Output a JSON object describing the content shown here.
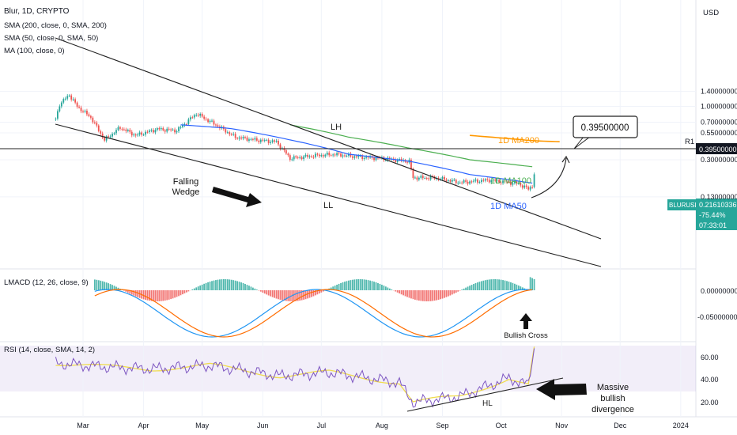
{
  "header": {
    "symbol_line": "Blur, 1D, CRYPTO",
    "indicators": [
      "SMA (200, close, 0, SMA, 200)",
      "SMA (50, close, 0, SMA, 50)",
      "MA (100, close, 0)"
    ],
    "currency": "USD"
  },
  "price_axis": [
    "1.40000000",
    "1.00000000",
    "0.70000000",
    "0.55000000",
    "0.30000000",
    "0.13000000"
  ],
  "r1": {
    "label": "R1",
    "value": "0.39500000"
  },
  "target_box": "0.39500000",
  "last_price": {
    "symbol": "BLURUSD",
    "price": "0.21610336",
    "change": "-75.44%",
    "countdown": "07:33:01"
  },
  "annotations": {
    "lh": "LH",
    "ll": "LL",
    "falling_wedge": [
      "Falling",
      "Wedge"
    ],
    "ma200": "1D MA200",
    "ma100": "1D MA100",
    "ma50": "1D MA50",
    "bullish_cross": "Bullish Cross",
    "hl": "HL",
    "divergence": [
      "Massive",
      "bullish",
      "divergence"
    ]
  },
  "macd": {
    "label": "LMACD (12, 26, close, 9)",
    "axis": [
      "0.00000000",
      "-0.05000000"
    ]
  },
  "rsi": {
    "label": "RSI (14, close, SMA, 14, 2)",
    "axis": [
      "60.00",
      "40.00",
      "20.00"
    ]
  },
  "time_axis": [
    "Mar",
    "Apr",
    "May",
    "Jun",
    "Jul",
    "Aug",
    "Sep",
    "Oct",
    "Nov",
    "Dec",
    "2024"
  ],
  "colors": {
    "up": "#26a69a",
    "down": "#ef5350",
    "ma50": "#2962ff",
    "ma100": "#4caf50",
    "ma200": "#ff9800",
    "rsi": "#7e57c2",
    "rsi_ma": "#f0dc4e",
    "macd": "#2196f3",
    "signal": "#ff6d00"
  },
  "chart_data": {
    "type": "candlestick",
    "title": "Blur, 1D, CRYPTO",
    "y_scale": "log",
    "y_ticks": [
      1.4,
      1.0,
      0.7,
      0.55,
      0.3,
      0.13
    ],
    "price_path": [
      [
        "2023-02-15",
        0.75
      ],
      [
        "2023-02-17",
        1.05
      ],
      [
        "2023-02-22",
        1.3
      ],
      [
        "2023-02-26",
        1.0
      ],
      [
        "2023-03-05",
        0.78
      ],
      [
        "2023-03-12",
        0.47
      ],
      [
        "2023-03-20",
        0.62
      ],
      [
        "2023-03-28",
        0.52
      ],
      [
        "2023-04-08",
        0.6
      ],
      [
        "2023-04-18",
        0.58
      ],
      [
        "2023-04-28",
        0.85
      ],
      [
        "2023-05-08",
        0.66
      ],
      [
        "2023-05-18",
        0.5
      ],
      [
        "2023-05-28",
        0.47
      ],
      [
        "2023-06-08",
        0.45
      ],
      [
        "2023-06-15",
        0.31
      ],
      [
        "2023-06-28",
        0.33
      ],
      [
        "2023-07-08",
        0.34
      ],
      [
        "2023-07-20",
        0.32
      ],
      [
        "2023-08-01",
        0.31
      ],
      [
        "2023-08-15",
        0.29
      ],
      [
        "2023-08-17",
        0.2
      ],
      [
        "2023-08-28",
        0.2
      ],
      [
        "2023-09-10",
        0.18
      ],
      [
        "2023-09-25",
        0.19
      ],
      [
        "2023-10-10",
        0.175
      ],
      [
        "2023-10-15",
        0.155
      ],
      [
        "2023-10-17",
        0.168
      ],
      [
        "2023-10-18",
        0.216
      ]
    ],
    "ma50": [
      [
        "2023-04-20",
        0.66
      ],
      [
        "2023-05-15",
        0.61
      ],
      [
        "2023-06-15",
        0.47
      ],
      [
        "2023-07-15",
        0.34
      ],
      [
        "2023-08-15",
        0.29
      ],
      [
        "2023-09-15",
        0.215
      ],
      [
        "2023-10-18",
        0.176
      ]
    ],
    "ma100": [
      [
        "2023-06-15",
        0.66
      ],
      [
        "2023-07-15",
        0.5
      ],
      [
        "2023-08-15",
        0.39
      ],
      [
        "2023-09-15",
        0.3
      ],
      [
        "2023-10-18",
        0.255
      ]
    ],
    "ma200_projection": [
      [
        "2023-09-15",
        0.52
      ],
      [
        "2023-10-18",
        0.46
      ],
      [
        "2023-11-01",
        0.45
      ]
    ],
    "r1": 0.395,
    "last_price": 0.21610336,
    "rsi_range": [
      20,
      70
    ],
    "rsi_ticks": [
      60,
      40,
      20
    ],
    "rsi_band": [
      30,
      70
    ],
    "rsi_path": [
      [
        "2023-02-15",
        55
      ],
      [
        "2023-03-10",
        52
      ],
      [
        "2023-04-05",
        50
      ],
      [
        "2023-05-05",
        53
      ],
      [
        "2023-06-10",
        44
      ],
      [
        "2023-07-05",
        47
      ],
      [
        "2023-08-10",
        38
      ],
      [
        "2023-08-17",
        21
      ],
      [
        "2023-09-10",
        26
      ],
      [
        "2023-10-05",
        42
      ],
      [
        "2023-10-15",
        36
      ],
      [
        "2023-10-18",
        68
      ]
    ],
    "macd_ticks": [
      0.0,
      -0.05
    ],
    "x_ticks": [
      "Mar",
      "Apr",
      "May",
      "Jun",
      "Jul",
      "Aug",
      "Sep",
      "Oct",
      "Nov",
      "Dec",
      "2024"
    ]
  }
}
